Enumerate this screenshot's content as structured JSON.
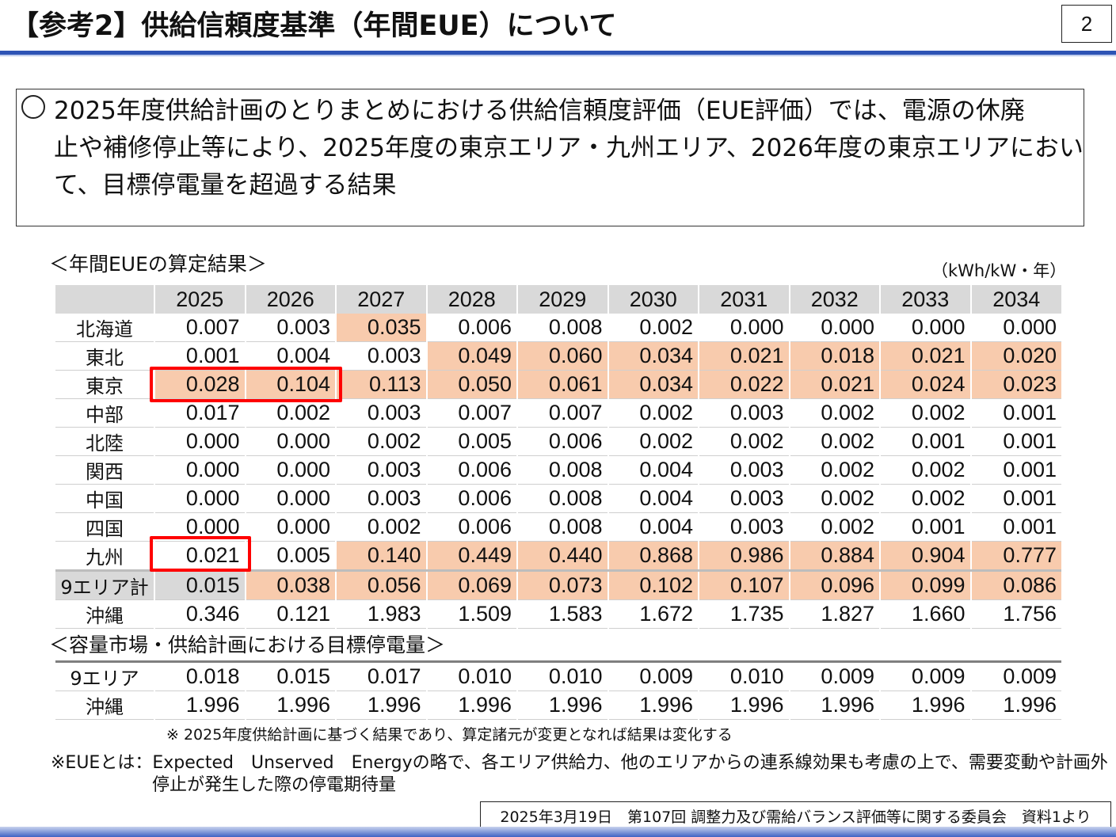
{
  "header": {
    "title": "【参考2】供給信頼度基準（年間EUE）について",
    "page_number": "2"
  },
  "summary": {
    "bullet": "○",
    "lines": [
      "2025年度供給計画のとりまとめにおける供給信頼度評価（EUE評価）では、電源の休廃",
      "止や補修停止等により、2025年度の東京エリア・九州エリア、2026年度の東京エリアにおい",
      "て、目標停電量を超過する結果"
    ]
  },
  "eue_table": {
    "label": "＜年間EUEの算定結果＞",
    "unit": "（kWh/kW・年）",
    "years": [
      "2025",
      "2026",
      "2027",
      "2028",
      "2029",
      "2030",
      "2031",
      "2032",
      "2033",
      "2034"
    ],
    "rows": [
      {
        "region": "北海道",
        "values": [
          "0.007",
          "0.003",
          "0.035",
          "0.006",
          "0.008",
          "0.002",
          "0.000",
          "0.000",
          "0.000",
          "0.000"
        ]
      },
      {
        "region": "東北",
        "values": [
          "0.001",
          "0.004",
          "0.003",
          "0.049",
          "0.060",
          "0.034",
          "0.021",
          "0.018",
          "0.021",
          "0.020"
        ]
      },
      {
        "region": "東京",
        "values": [
          "0.028",
          "0.104",
          "0.113",
          "0.050",
          "0.061",
          "0.034",
          "0.022",
          "0.021",
          "0.024",
          "0.023"
        ]
      },
      {
        "region": "中部",
        "values": [
          "0.017",
          "0.002",
          "0.003",
          "0.007",
          "0.007",
          "0.002",
          "0.003",
          "0.002",
          "0.002",
          "0.001"
        ]
      },
      {
        "region": "北陸",
        "values": [
          "0.000",
          "0.000",
          "0.002",
          "0.005",
          "0.006",
          "0.002",
          "0.002",
          "0.002",
          "0.001",
          "0.001"
        ]
      },
      {
        "region": "関西",
        "values": [
          "0.000",
          "0.000",
          "0.003",
          "0.006",
          "0.008",
          "0.004",
          "0.003",
          "0.002",
          "0.002",
          "0.001"
        ]
      },
      {
        "region": "中国",
        "values": [
          "0.000",
          "0.000",
          "0.003",
          "0.006",
          "0.008",
          "0.004",
          "0.003",
          "0.002",
          "0.002",
          "0.001"
        ]
      },
      {
        "region": "四国",
        "values": [
          "0.000",
          "0.000",
          "0.002",
          "0.006",
          "0.008",
          "0.004",
          "0.003",
          "0.002",
          "0.001",
          "0.001"
        ]
      },
      {
        "region": "九州",
        "values": [
          "0.021",
          "0.005",
          "0.140",
          "0.449",
          "0.440",
          "0.868",
          "0.986",
          "0.884",
          "0.904",
          "0.777"
        ]
      },
      {
        "region": "9エリア計",
        "values": [
          "0.015",
          "0.038",
          "0.056",
          "0.069",
          "0.073",
          "0.102",
          "0.107",
          "0.096",
          "0.099",
          "0.086"
        ]
      },
      {
        "region": "沖縄",
        "values": [
          "0.346",
          "0.121",
          "1.983",
          "1.509",
          "1.583",
          "1.672",
          "1.735",
          "1.827",
          "1.660",
          "1.756"
        ]
      }
    ],
    "highlight_color": "#f8cbad",
    "alert_color": "#ff0000"
  },
  "target_table": {
    "label": "＜容量市場・供給計画における目標停電量＞",
    "rows": [
      {
        "region": "9エリア",
        "values": [
          "0.018",
          "0.015",
          "0.017",
          "0.010",
          "0.010",
          "0.009",
          "0.010",
          "0.009",
          "0.009",
          "0.009"
        ]
      },
      {
        "region": "沖縄",
        "values": [
          "1.996",
          "1.996",
          "1.996",
          "1.996",
          "1.996",
          "1.996",
          "1.996",
          "1.996",
          "1.996",
          "1.996"
        ]
      }
    ]
  },
  "notes": {
    "note1": "※ 2025年度供給計画に基づく結果であり、算定諸元が変更となれば結果は変化する",
    "note2_line1": "※EUEとは：Expected　Unserved　Energyの略で、各エリア供給力、他のエリアからの連系線効果も考慮の上で、需要変動や計画外",
    "note2_line2": "停止が発生した際の停電期待量"
  },
  "footer": {
    "source": "2025年3月19日　第107回 調整力及び需給バランス評価等に関する委員会　資料1より"
  }
}
